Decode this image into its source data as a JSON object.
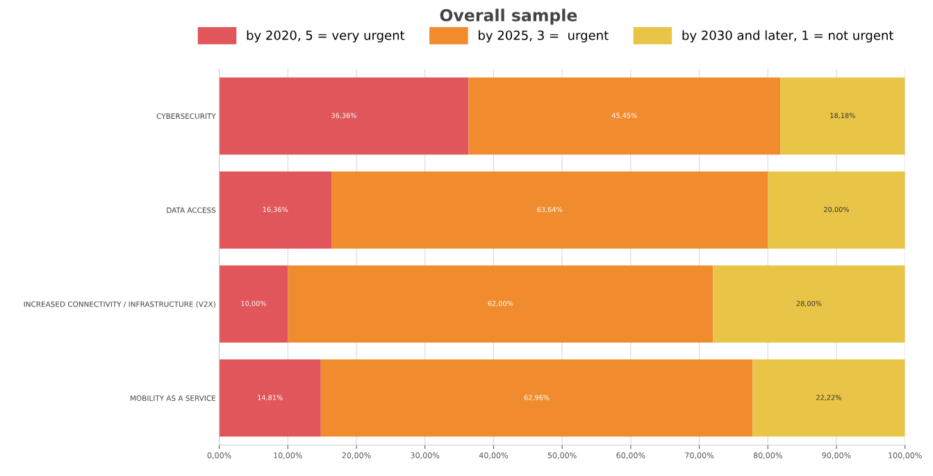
{
  "chart_data": {
    "type": "bar",
    "orientation": "horizontal",
    "stacked": true,
    "title": "Overall sample",
    "categories": [
      "CYBERSECURITY",
      "DATA ACCESS",
      "INCREASED CONNECTIVITY / INFRASTRUCTURE (V2X)",
      "MOBILITY AS A SERVICE"
    ],
    "series": [
      {
        "name": "by 2020, 5 = very urgent",
        "color": "#e0565a",
        "values": [
          36.36,
          16.36,
          10.0,
          14.81
        ],
        "value_labels": [
          "36,36%",
          "16,36%",
          "10,00%",
          "14,81%"
        ]
      },
      {
        "name": "by 2025, 3 =  urgent",
        "color": "#f08c2e",
        "values": [
          45.45,
          63.64,
          62.0,
          62.96
        ],
        "value_labels": [
          "45,45%",
          "63,64%",
          "62,00%",
          "62,96%"
        ]
      },
      {
        "name": "by 2030 and later, 1 = not urgent",
        "color": "#e8c547",
        "values": [
          18.18,
          20.0,
          28.0,
          22.22
        ],
        "value_labels": [
          "18,18%",
          "20,00%",
          "28,00%",
          "22,22%"
        ]
      }
    ],
    "xlim": [
      0,
      100
    ],
    "xticks": [
      {
        "value": 0,
        "label": "0,00%"
      },
      {
        "value": 10,
        "label": "10,00%"
      },
      {
        "value": 20,
        "label": "20,00%"
      },
      {
        "value": 30,
        "label": "30,00%"
      },
      {
        "value": 40,
        "label": "40,00%"
      },
      {
        "value": 50,
        "label": "50,00%"
      },
      {
        "value": 60,
        "label": "60,00%"
      },
      {
        "value": 70,
        "label": "70,00%"
      },
      {
        "value": 80,
        "label": "80,00%"
      },
      {
        "value": 90,
        "label": "90,00%"
      },
      {
        "value": 100,
        "label": "100,00%"
      }
    ],
    "grid": "x",
    "legend": "top right"
  }
}
